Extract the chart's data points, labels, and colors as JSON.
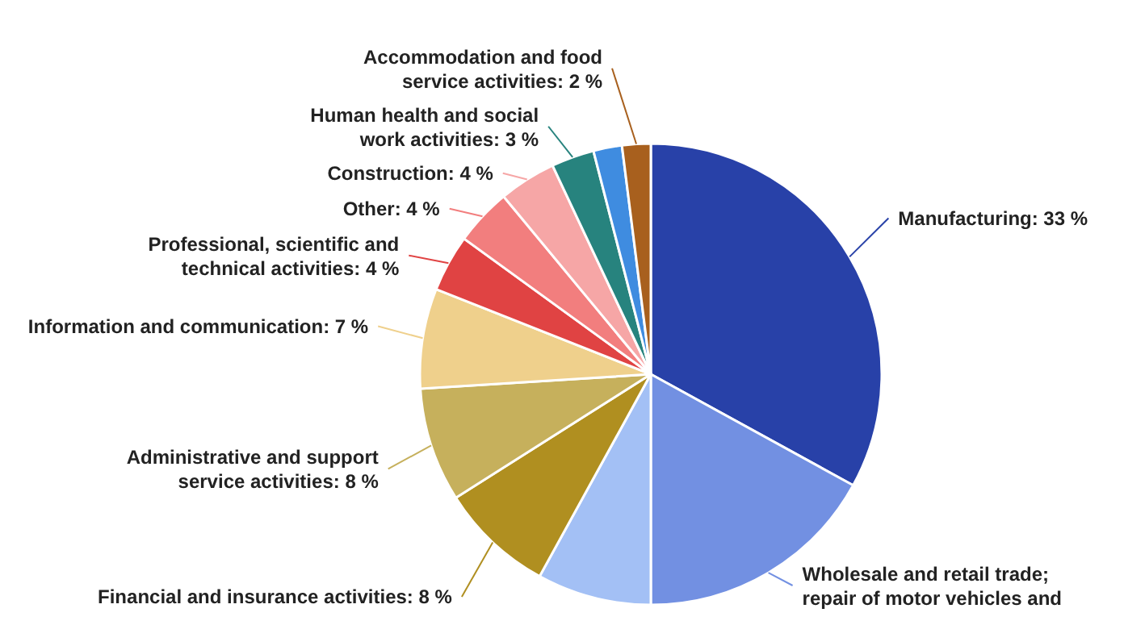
{
  "chart_data": {
    "type": "pie",
    "categories": [
      "Manufacturing",
      "Wholesale and retail trade; repair of motor vehicles and",
      null,
      "Financial and insurance activities",
      "Administrative and support service activities",
      "Information and communication",
      "Professional, scientific and technical activities",
      "Other",
      "Construction",
      "Human health and social work activities",
      null,
      "Accommodation and food service activities"
    ],
    "values": [
      33,
      17,
      8,
      8,
      8,
      7,
      4,
      4,
      4,
      3,
      2,
      2
    ],
    "value_labels": [
      "33 %",
      null,
      null,
      "8 %",
      "8 %",
      "7 %",
      "4 %",
      "4 %",
      "4 %",
      "3 %",
      null,
      "2 %"
    ],
    "colors": [
      "#2841a8",
      "#7290e2",
      "#a3c0f5",
      "#b08f20",
      "#c6b05c",
      "#efd08c",
      "#e04343",
      "#f27e7e",
      "#f6a6a6",
      "#27837e",
      "#3f8ce0",
      "#a8601e"
    ]
  }
}
